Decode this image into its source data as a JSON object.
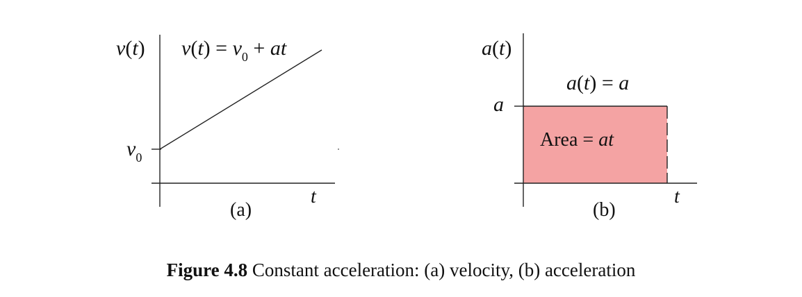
{
  "panel_a": {
    "ylabel_v": "v",
    "ylabel_t": "t",
    "eq_lhs_v": "v",
    "eq_lhs_t": "t",
    "eq_equals": "=",
    "eq_v0": "v",
    "eq_v0_sub": "0",
    "eq_plus": "+",
    "eq_at": "at",
    "v0_label": "v",
    "v0_sub": "0",
    "xlabel": "t",
    "label": "(a)"
  },
  "panel_b": {
    "ylabel_a": "a",
    "ylabel_t": "t",
    "eq_lhs_a": "a",
    "eq_lhs_t": "t",
    "eq_equals": "=",
    "eq_rhs": "a",
    "level_label": "a",
    "area_text": "Area",
    "area_equals": "=",
    "area_at": "at",
    "xlabel": "t",
    "label": "(b)",
    "fill_color": "#f4a3a3"
  },
  "caption": {
    "number": "Figure 4.8",
    "text": "Constant acceleration: (a) velocity, (b) acceleration"
  }
}
